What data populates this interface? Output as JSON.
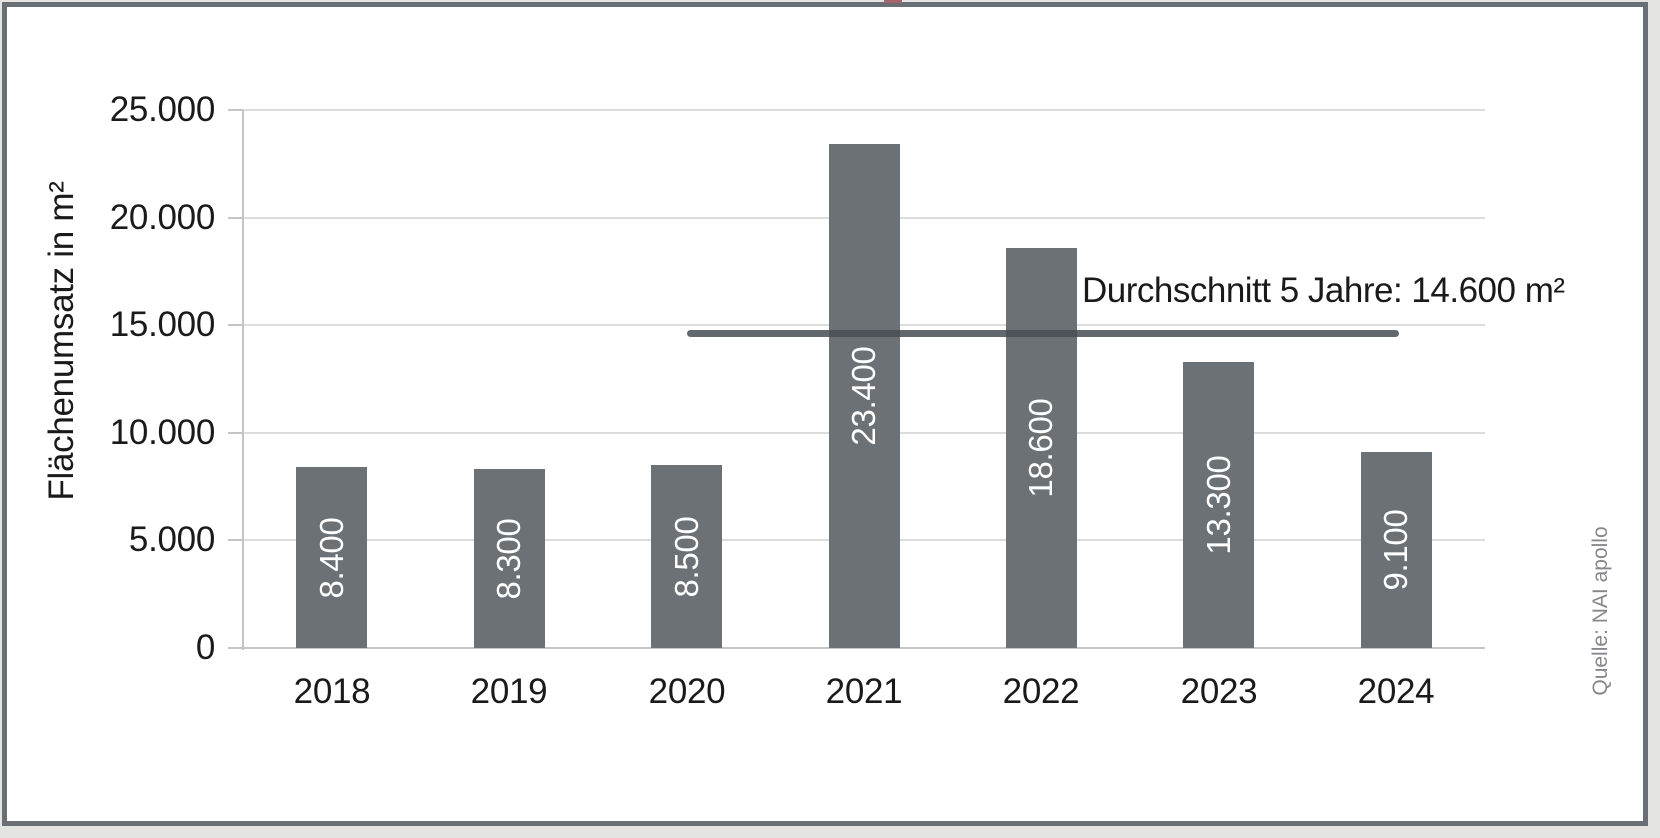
{
  "frame": {
    "border_color": "#6a6f76",
    "outer_color": "#e4e4e2",
    "background": "#ffffff",
    "artifact_color": "#a4646c"
  },
  "chart_data": {
    "type": "bar",
    "title": "",
    "categories": [
      "2018",
      "2019",
      "2020",
      "2021",
      "2022",
      "2023",
      "2024"
    ],
    "values": [
      8400,
      8300,
      8500,
      23400,
      18600,
      13300,
      9100
    ],
    "bar_labels": [
      "8.400",
      "8.300",
      "8.500",
      "23.400",
      "18.600",
      "13.300",
      "9.100"
    ],
    "xlabel": "",
    "ylabel": "Flächenumsatz in m²",
    "ylim": [
      0,
      25000
    ],
    "ytick_interval": 5000,
    "yticks": [
      {
        "value": 0,
        "label": "0"
      },
      {
        "value": 5000,
        "label": "5.000"
      },
      {
        "value": 10000,
        "label": "10.000"
      },
      {
        "value": 15000,
        "label": "15.000"
      },
      {
        "value": 20000,
        "label": "20.000"
      },
      {
        "value": 25000,
        "label": "25.000"
      }
    ],
    "grid": "horizontal",
    "legend": "none",
    "bar_color": "#6c7176",
    "bar_label_color": "#ffffff",
    "average_line": {
      "value": 14600,
      "label": "Durchschnitt 5 Jahre: 14.600 m²",
      "span_categories": [
        "2020",
        "2024"
      ],
      "color": "rgba(72,77,83,0.85)"
    },
    "source": "Quelle: NAI apollo"
  }
}
